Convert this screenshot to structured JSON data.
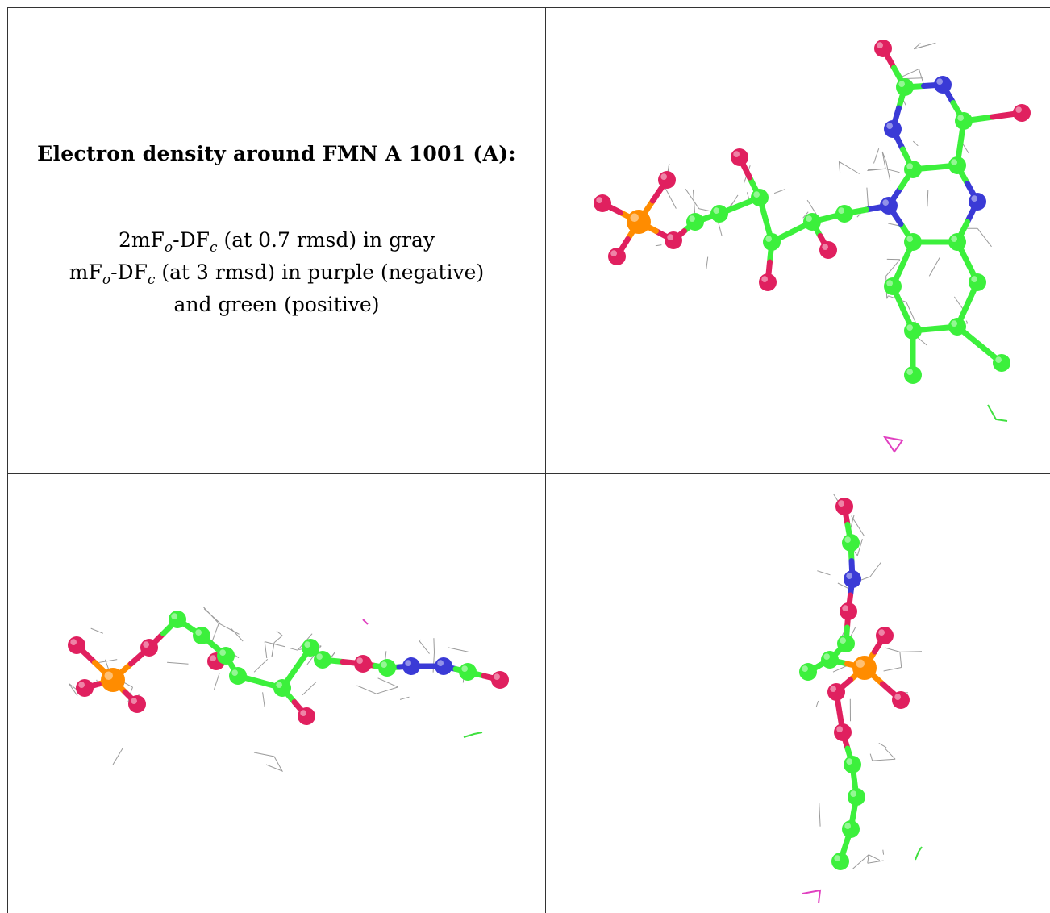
{
  "caption": {
    "title": "Electron density around FMN A 1001 (A):",
    "line1": {
      "a": "2mF",
      "o": "o",
      "b": "-DF",
      "c": "c",
      "rest": " (at 0.7 rmsd) in gray"
    },
    "line2": {
      "a": "mF",
      "o": "o",
      "b": "-DF",
      "c": "c",
      "rest": " (at 3 rmsd) in purple (negative)"
    },
    "line3": "and green (positive)"
  },
  "colors": {
    "carbon": "#3cf03c",
    "nitrogen": "#3a3ad6",
    "oxygen": "#e0205f",
    "phosphorus": "#ff8c00",
    "mesh": "#9a9a9a",
    "negative_density": "#e040c0",
    "positive_density": "#40e040"
  },
  "panels": [
    {
      "name": "view-top-right"
    },
    {
      "name": "view-bottom-left"
    },
    {
      "name": "view-bottom-right"
    }
  ]
}
